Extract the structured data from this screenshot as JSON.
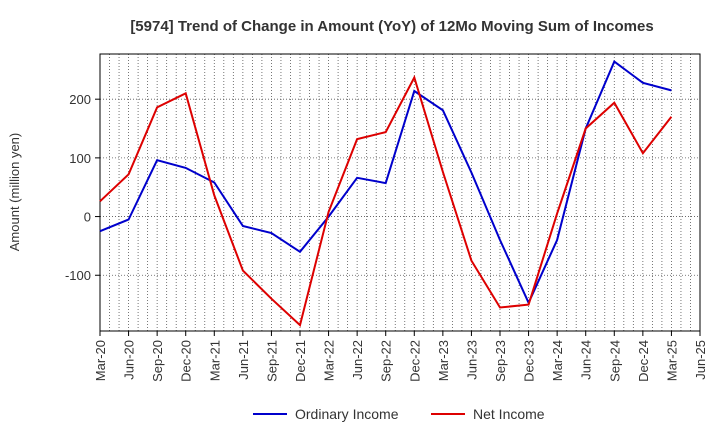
{
  "chart_data": {
    "type": "line",
    "title": "[5974]  Trend of Change in Amount (YoY) of 12Mo Moving Sum of Incomes",
    "xlabel": "",
    "ylabel": "Amount (million yen)",
    "ylim": [
      -195,
      277
    ],
    "yticks": [
      -100,
      0,
      100,
      200
    ],
    "categories": [
      "Mar-20",
      "Jun-20",
      "Sep-20",
      "Dec-20",
      "Mar-21",
      "Jun-21",
      "Sep-21",
      "Dec-21",
      "Mar-22",
      "Jun-22",
      "Sep-22",
      "Dec-22",
      "Mar-23",
      "Jun-23",
      "Sep-23",
      "Dec-23",
      "Mar-24",
      "Jun-24",
      "Sep-24",
      "Dec-24",
      "Mar-25",
      "Jun-25"
    ],
    "grid": true,
    "legend_position": "bottom-center",
    "series": [
      {
        "name": "Ordinary Income",
        "color": "#0000cc",
        "values": [
          -25,
          -5,
          96,
          83,
          58,
          -16,
          -28,
          -60,
          0,
          66,
          57,
          214,
          181,
          75,
          -40,
          -147,
          -40,
          150,
          264,
          228,
          215,
          null
        ]
      },
      {
        "name": "Net Income",
        "color": "#dd0000",
        "values": [
          26,
          72,
          186,
          210,
          36,
          -92,
          -140,
          -185,
          8,
          132,
          144,
          237,
          76,
          -75,
          -155,
          -150,
          5,
          150,
          194,
          108,
          170,
          null
        ]
      }
    ]
  }
}
